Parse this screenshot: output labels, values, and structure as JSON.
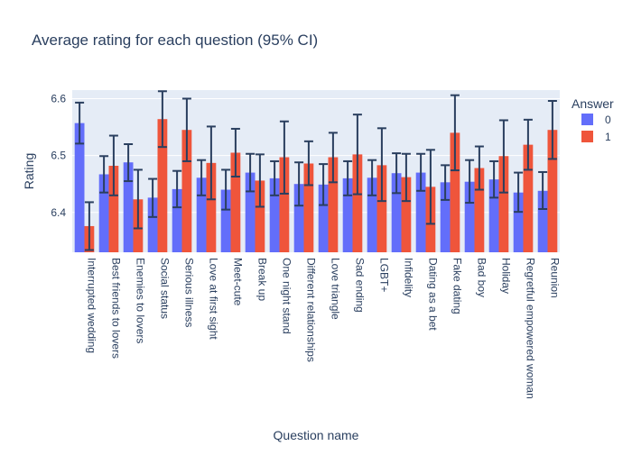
{
  "chart_data": {
    "type": "bar",
    "title": "Average rating for each question (95% CI)",
    "xlabel": "Question name",
    "ylabel": "Rating",
    "ylim": [
      6.33,
      6.615
    ],
    "yticks": [
      6.4,
      6.5,
      6.6
    ],
    "ytick_labels": [
      "6.4",
      "6.5",
      "6.6"
    ],
    "legend_title": "Answer",
    "legend_position": "top-right",
    "categories": [
      "Interrupted wedding",
      "Best friends to lovers",
      "Enemies to lovers",
      "Social status",
      "Serious illness",
      "Love at first sight",
      "Meet-cute",
      "Break up",
      "One night stand",
      "Different relationships",
      "Love triangle",
      "Sad ending",
      "LGBT+",
      "Infidelity",
      "Dating as a bet",
      "Fake dating",
      "Bad boy",
      "Holiday",
      "Regretful empowered woman",
      "Reunion"
    ],
    "series": [
      {
        "name": "0",
        "color": "#636efa",
        "values": [
          6.557,
          6.467,
          6.488,
          6.426,
          6.441,
          6.461,
          6.44,
          6.47,
          6.46,
          6.45,
          6.449,
          6.46,
          6.461,
          6.469,
          6.47,
          6.453,
          6.454,
          6.458,
          6.435,
          6.438
        ],
        "ci_low": [
          6.521,
          6.435,
          6.455,
          6.392,
          6.409,
          6.43,
          6.405,
          6.437,
          6.43,
          6.412,
          6.413,
          6.43,
          6.43,
          6.434,
          6.438,
          6.422,
          6.417,
          6.426,
          6.401,
          6.406
        ],
        "ci_high": [
          6.593,
          6.499,
          6.52,
          6.459,
          6.473,
          6.492,
          6.475,
          6.503,
          6.49,
          6.488,
          6.485,
          6.49,
          6.492,
          6.504,
          6.503,
          6.483,
          6.492,
          6.49,
          6.47,
          6.471
        ]
      },
      {
        "name": "1",
        "color": "#ef553b",
        "values": [
          6.376,
          6.482,
          6.423,
          6.564,
          6.545,
          6.487,
          6.505,
          6.456,
          6.497,
          6.486,
          6.497,
          6.502,
          6.483,
          6.462,
          6.445,
          6.54,
          6.478,
          6.499,
          6.519,
          6.545
        ],
        "ci_low": [
          6.334,
          6.43,
          6.372,
          6.515,
          6.49,
          6.423,
          6.463,
          6.41,
          6.433,
          6.448,
          6.453,
          6.432,
          6.42,
          6.42,
          6.38,
          6.474,
          6.44,
          6.435,
          6.475,
          6.494
        ],
        "ci_high": [
          6.418,
          6.535,
          6.475,
          6.613,
          6.6,
          6.551,
          6.547,
          6.502,
          6.56,
          6.525,
          6.54,
          6.572,
          6.548,
          6.503,
          6.51,
          6.606,
          6.516,
          6.562,
          6.563,
          6.596
        ]
      }
    ]
  }
}
